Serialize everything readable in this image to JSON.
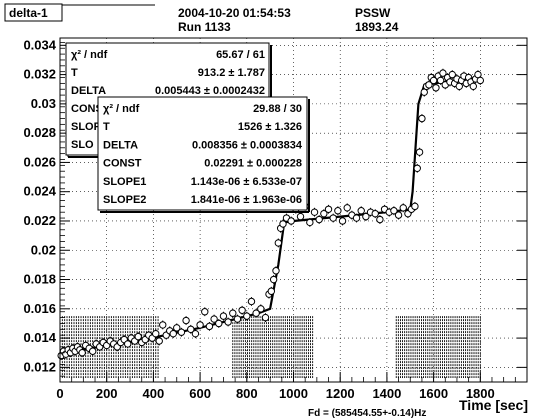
{
  "header": {
    "tag": "delta-1",
    "datetime": "2004-10-20 01:54:53",
    "run": "Run 1133",
    "system": "PSSW",
    "system_value": "1893.24"
  },
  "fit_box_back": {
    "rows": [
      {
        "name": "χ² / ndf",
        "value": "65.67 / 61"
      },
      {
        "name": "T",
        "value": "913.2 ± 1.787"
      },
      {
        "name": "DELTA",
        "value": "0.005443 ± 0.0002432"
      },
      {
        "name": "CONS",
        "value": ""
      },
      {
        "name": "SLOP",
        "value": ""
      },
      {
        "name": "SLO",
        "value": ""
      }
    ]
  },
  "fit_box_front": {
    "rows": [
      {
        "name": "χ² / ndf",
        "value": "29.88 / 30"
      },
      {
        "name": "T",
        "value": "1526 ± 1.326"
      },
      {
        "name": "DELTA",
        "value": "0.008356 ± 0.0003834"
      },
      {
        "name": "CONST",
        "value": "0.02291 ± 0.000228"
      },
      {
        "name": "SLOPE1",
        "value": "1.143e-06 ± 6.533e-07"
      },
      {
        "name": "SLOPE2",
        "value": "1.841e-06 ± 1.963e-06"
      }
    ]
  },
  "footer": {
    "fd_label": "Fd = (585454.55+-0.14)Hz"
  },
  "chart_data": {
    "type": "scatter",
    "title": "",
    "xlabel": "Time [sec]",
    "ylabel": "",
    "xlim": [
      0,
      2000
    ],
    "ylim": [
      0.011,
      0.0345
    ],
    "x_ticks": [
      0,
      200,
      400,
      600,
      800,
      1000,
      1200,
      1400,
      1600,
      1800
    ],
    "y_ticks": [
      0.012,
      0.014,
      0.016,
      0.018,
      0.02,
      0.022,
      0.024,
      0.026,
      0.028,
      0.03,
      0.032,
      0.034
    ],
    "y_tick_labels": [
      "0.012",
      "0.014",
      "0.016",
      "0.018",
      "0.02",
      "0.022",
      "0.024",
      "0.026",
      "0.028",
      "0.03",
      "0.032",
      "0.034"
    ],
    "grid": true,
    "fit_line": {
      "x": [
        0,
        300,
        600,
        850,
        900,
        935,
        960,
        1000,
        1200,
        1400,
        1500,
        1510,
        1535,
        1560,
        1600,
        1700,
        1800
      ],
      "y": [
        0.013,
        0.0137,
        0.0147,
        0.0157,
        0.016,
        0.019,
        0.0219,
        0.022,
        0.0223,
        0.0226,
        0.0228,
        0.024,
        0.03,
        0.0313,
        0.0314,
        0.0316,
        0.0318
      ]
    },
    "series": [
      {
        "x": [
          5,
          15,
          25,
          35,
          45,
          55,
          65,
          75,
          85,
          95,
          110,
          125,
          140,
          155,
          170,
          185,
          200,
          215,
          230,
          245,
          260,
          275,
          290,
          305,
          320,
          335,
          350,
          365,
          380,
          395,
          410,
          425,
          440,
          455,
          470,
          485,
          500,
          520,
          540,
          560,
          580,
          600,
          620,
          640,
          660,
          680,
          700,
          720,
          740,
          760,
          780,
          800,
          820,
          840,
          860,
          880,
          895,
          905,
          915,
          925,
          935,
          945,
          955,
          970,
          990,
          1010,
          1030,
          1050,
          1070,
          1090,
          1110,
          1130,
          1150,
          1170,
          1190,
          1210,
          1230,
          1250,
          1270,
          1290,
          1310,
          1330,
          1350,
          1370,
          1390,
          1410,
          1430,
          1450,
          1470,
          1490,
          1505,
          1520,
          1530,
          1540,
          1550,
          1560,
          1570,
          1580,
          1590,
          1600,
          1610,
          1620,
          1630,
          1640,
          1650,
          1660,
          1670,
          1680,
          1690,
          1700,
          1710,
          1720,
          1730,
          1740,
          1750,
          1760,
          1770,
          1780,
          1790,
          1800
        ],
        "y": [
          0.0128,
          0.0131,
          0.0129,
          0.0132,
          0.013,
          0.0133,
          0.0131,
          0.0134,
          0.0132,
          0.013,
          0.0135,
          0.0133,
          0.0131,
          0.0136,
          0.0134,
          0.0137,
          0.0135,
          0.0138,
          0.0136,
          0.0134,
          0.0137,
          0.0139,
          0.0136,
          0.014,
          0.0138,
          0.0141,
          0.0137,
          0.0139,
          0.0142,
          0.014,
          0.0143,
          0.0138,
          0.0149,
          0.0142,
          0.0145,
          0.0143,
          0.0147,
          0.0144,
          0.0152,
          0.0146,
          0.0143,
          0.0149,
          0.0158,
          0.0148,
          0.0153,
          0.015,
          0.0155,
          0.0151,
          0.0157,
          0.0153,
          0.0159,
          0.0155,
          0.0165,
          0.0157,
          0.016,
          0.0154,
          0.017,
          0.0172,
          0.018,
          0.0186,
          0.0205,
          0.0215,
          0.0218,
          0.0222,
          0.022,
          0.0228,
          0.0223,
          0.023,
          0.0219,
          0.0226,
          0.0221,
          0.0225,
          0.0228,
          0.0222,
          0.0227,
          0.022,
          0.0229,
          0.0224,
          0.0222,
          0.0227,
          0.0223,
          0.0226,
          0.0225,
          0.0221,
          0.0228,
          0.0226,
          0.0227,
          0.0224,
          0.0229,
          0.0225,
          0.0228,
          0.023,
          0.0256,
          0.0267,
          0.029,
          0.0308,
          0.0312,
          0.0313,
          0.0318,
          0.0316,
          0.0311,
          0.0319,
          0.0316,
          0.0321,
          0.0313,
          0.0318,
          0.0315,
          0.032,
          0.0314,
          0.0317,
          0.0312,
          0.0316,
          0.0319,
          0.0314,
          0.0318,
          0.0315,
          0.0312,
          0.0317,
          0.032,
          0.0316
        ],
        "y_err": [
          0.0003,
          0.0003,
          0.0003,
          0.0003,
          0.0003,
          0.0003,
          0.0003,
          0.0003,
          0.0003,
          0.0003,
          0.0003,
          0.0003,
          0.0003,
          0.0003,
          0.0003,
          0.0003,
          0.0003,
          0.0003,
          0.0003,
          0.0003,
          0.0003,
          0.0003,
          0.0003,
          0.0003,
          0.0003,
          0.0003,
          0.0003,
          0.0003,
          0.0003,
          0.0003,
          0.0003,
          0.0003,
          0.0003,
          0.0003,
          0.0003,
          0.0003,
          0.0003,
          0.0003,
          0.0003,
          0.0003,
          0.0003,
          0.0003,
          0.0003,
          0.0003,
          0.0003,
          0.0003,
          0.0003,
          0.0003,
          0.0003,
          0.0003,
          0.0003,
          0.0003,
          0.0003,
          0.0003,
          0.0003,
          0.0003,
          0.0003,
          0.0003,
          0.0003,
          0.0003,
          0.0003,
          0.0003,
          0.0003,
          0.0003,
          0.0003,
          0.0003,
          0.0003,
          0.0003,
          0.0003,
          0.0003,
          0.0003,
          0.0003,
          0.0003,
          0.0003,
          0.0003,
          0.0003,
          0.0003,
          0.0003,
          0.0003,
          0.0003,
          0.0003,
          0.0003,
          0.0003,
          0.0003,
          0.0003,
          0.0003,
          0.0003,
          0.0003,
          0.0003,
          0.0003,
          0.0003,
          0.0003,
          0.0003,
          0.0003,
          0.0003,
          0.0003,
          0.0003,
          0.0003,
          0.0003,
          0.0003,
          0.0003,
          0.0003,
          0.0003,
          0.0003,
          0.0003,
          0.0003,
          0.0003,
          0.0003,
          0.0003,
          0.0003,
          0.0003,
          0.0003,
          0.0003,
          0.0003,
          0.0003,
          0.0003,
          0.0003,
          0.0003,
          0.0003,
          0.0003
        ]
      }
    ]
  }
}
